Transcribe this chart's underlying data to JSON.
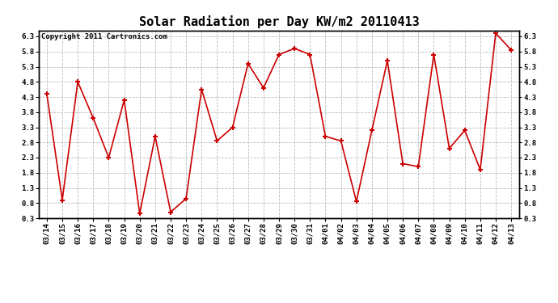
{
  "title": "Solar Radiation per Day KW/m2 20110413",
  "copyright": "Copyright 2011 Cartronics.com",
  "labels": [
    "03/14",
    "03/15",
    "03/16",
    "03/17",
    "03/18",
    "03/19",
    "03/20",
    "03/21",
    "03/22",
    "03/23",
    "03/24",
    "03/25",
    "03/26",
    "03/27",
    "03/28",
    "03/29",
    "03/30",
    "03/31",
    "04/01",
    "04/02",
    "04/03",
    "04/04",
    "04/05",
    "04/06",
    "04/07",
    "04/08",
    "04/09",
    "04/10",
    "04/11",
    "04/12",
    "04/13"
  ],
  "values": [
    4.4,
    0.9,
    4.8,
    3.6,
    2.3,
    4.2,
    0.45,
    3.0,
    0.5,
    0.95,
    4.55,
    2.85,
    3.3,
    5.4,
    4.6,
    5.7,
    5.9,
    5.7,
    3.0,
    2.85,
    0.85,
    3.2,
    5.5,
    2.1,
    2.0,
    5.7,
    2.6,
    3.2,
    1.9,
    6.4,
    5.85
  ],
  "line_color": "#cc0000",
  "marker": "+",
  "marker_size": 5,
  "marker_edge_width": 1.5,
  "bg_color": "#ffffff",
  "grid_color": "#bbbbbb",
  "ylim": [
    0.3,
    6.5
  ],
  "yticks": [
    0.3,
    0.8,
    1.3,
    1.8,
    2.3,
    2.8,
    3.3,
    3.8,
    4.3,
    4.8,
    5.3,
    5.8,
    6.3
  ],
  "title_fontsize": 11,
  "copyright_fontsize": 6.5,
  "tick_fontsize": 6.5,
  "linewidth": 1.2
}
